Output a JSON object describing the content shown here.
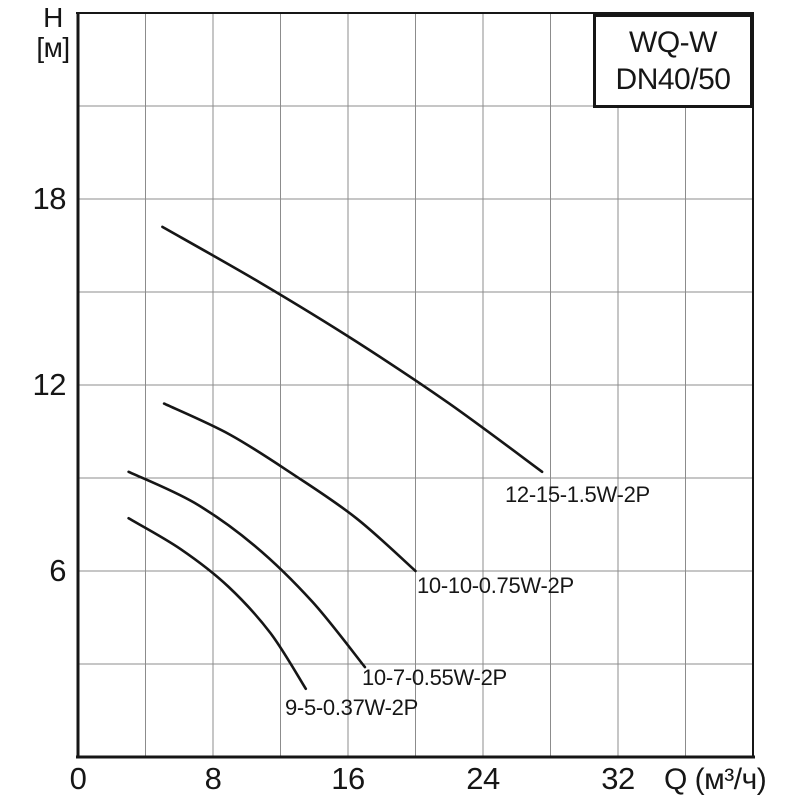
{
  "title_box": {
    "line1": "WQ-W",
    "line2": "DN40/50"
  },
  "y_axis": {
    "symbol": "H",
    "unit": "[м]"
  },
  "x_axis": {
    "label": "Q (м³/ч)"
  },
  "chart_data": {
    "type": "line",
    "title": "WQ-W DN40/50",
    "xlabel": "Q (м³/ч)",
    "ylabel": "H [м]",
    "xlim": [
      0,
      40
    ],
    "ylim": [
      0,
      24
    ],
    "x_ticks": [
      0,
      8,
      16,
      24,
      32
    ],
    "y_ticks": [
      6,
      12,
      18
    ],
    "x_grid_step": 4,
    "y_grid_step": 3,
    "grid": true,
    "legend_position": "inline-labels",
    "line_color": "#161616",
    "grid_color": "#8c8c8c",
    "series": [
      {
        "name": "12-15-1.5W-2P",
        "points": [
          [
            5.0,
            17.1
          ],
          [
            10.8,
            15.3
          ],
          [
            16.5,
            13.4
          ],
          [
            22.0,
            11.4
          ],
          [
            27.5,
            9.2
          ]
        ]
      },
      {
        "name": "10-10-0.75W-2P",
        "points": [
          [
            5.1,
            11.4
          ],
          [
            9.0,
            10.4
          ],
          [
            12.8,
            9.1
          ],
          [
            16.5,
            7.7
          ],
          [
            20.0,
            6.0
          ]
        ]
      },
      {
        "name": "10-7-0.55W-2P",
        "points": [
          [
            3.0,
            9.2
          ],
          [
            6.9,
            8.2
          ],
          [
            10.5,
            6.8
          ],
          [
            13.9,
            5.0
          ],
          [
            17.0,
            2.9
          ]
        ]
      },
      {
        "name": "9-5-0.37W-2P",
        "points": [
          [
            3.0,
            7.7
          ],
          [
            6.1,
            6.7
          ],
          [
            8.9,
            5.5
          ],
          [
            11.4,
            4.0
          ],
          [
            13.5,
            2.2
          ]
        ]
      }
    ]
  }
}
